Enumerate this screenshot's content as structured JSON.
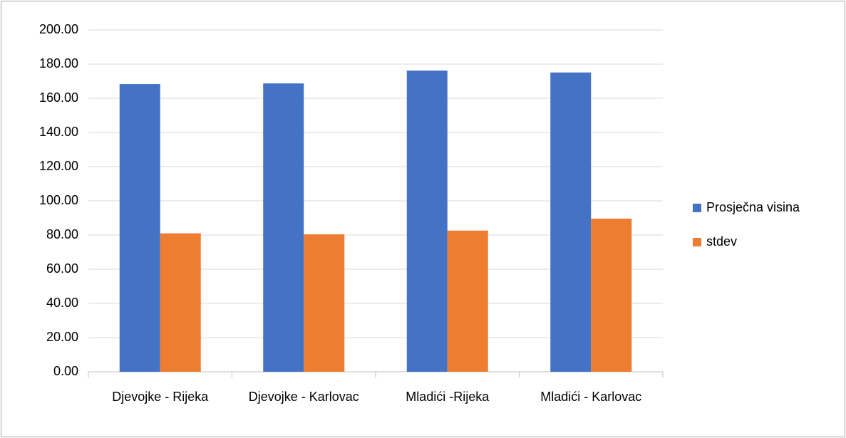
{
  "chart_data": {
    "type": "bar",
    "categories": [
      "Djevojke - Rijeka",
      "Djevojke - Karlovac",
      "Mladići -Rijeka",
      "Mladići - Karlovac"
    ],
    "series": [
      {
        "name": "Prosječna visina",
        "color": "#4472c4",
        "values": [
          168.3,
          168.7,
          176.2,
          175.1
        ]
      },
      {
        "name": "stdev",
        "color": "#ed7d31",
        "values": [
          81.0,
          80.4,
          82.6,
          89.6
        ]
      }
    ],
    "ylim": [
      0,
      200
    ],
    "yticks": [
      {
        "value": 0,
        "label": "0.00"
      },
      {
        "value": 20,
        "label": "20.00"
      },
      {
        "value": 40,
        "label": "40.00"
      },
      {
        "value": 60,
        "label": "60.00"
      },
      {
        "value": 80,
        "label": "80.00"
      },
      {
        "value": 100,
        "label": "100.00"
      },
      {
        "value": 120,
        "label": "120.00"
      },
      {
        "value": 140,
        "label": "140.00"
      },
      {
        "value": 160,
        "label": "160.00"
      },
      {
        "value": 180,
        "label": "180.00"
      },
      {
        "value": 200,
        "label": "200.00"
      }
    ],
    "grid": true,
    "legend": "right"
  }
}
